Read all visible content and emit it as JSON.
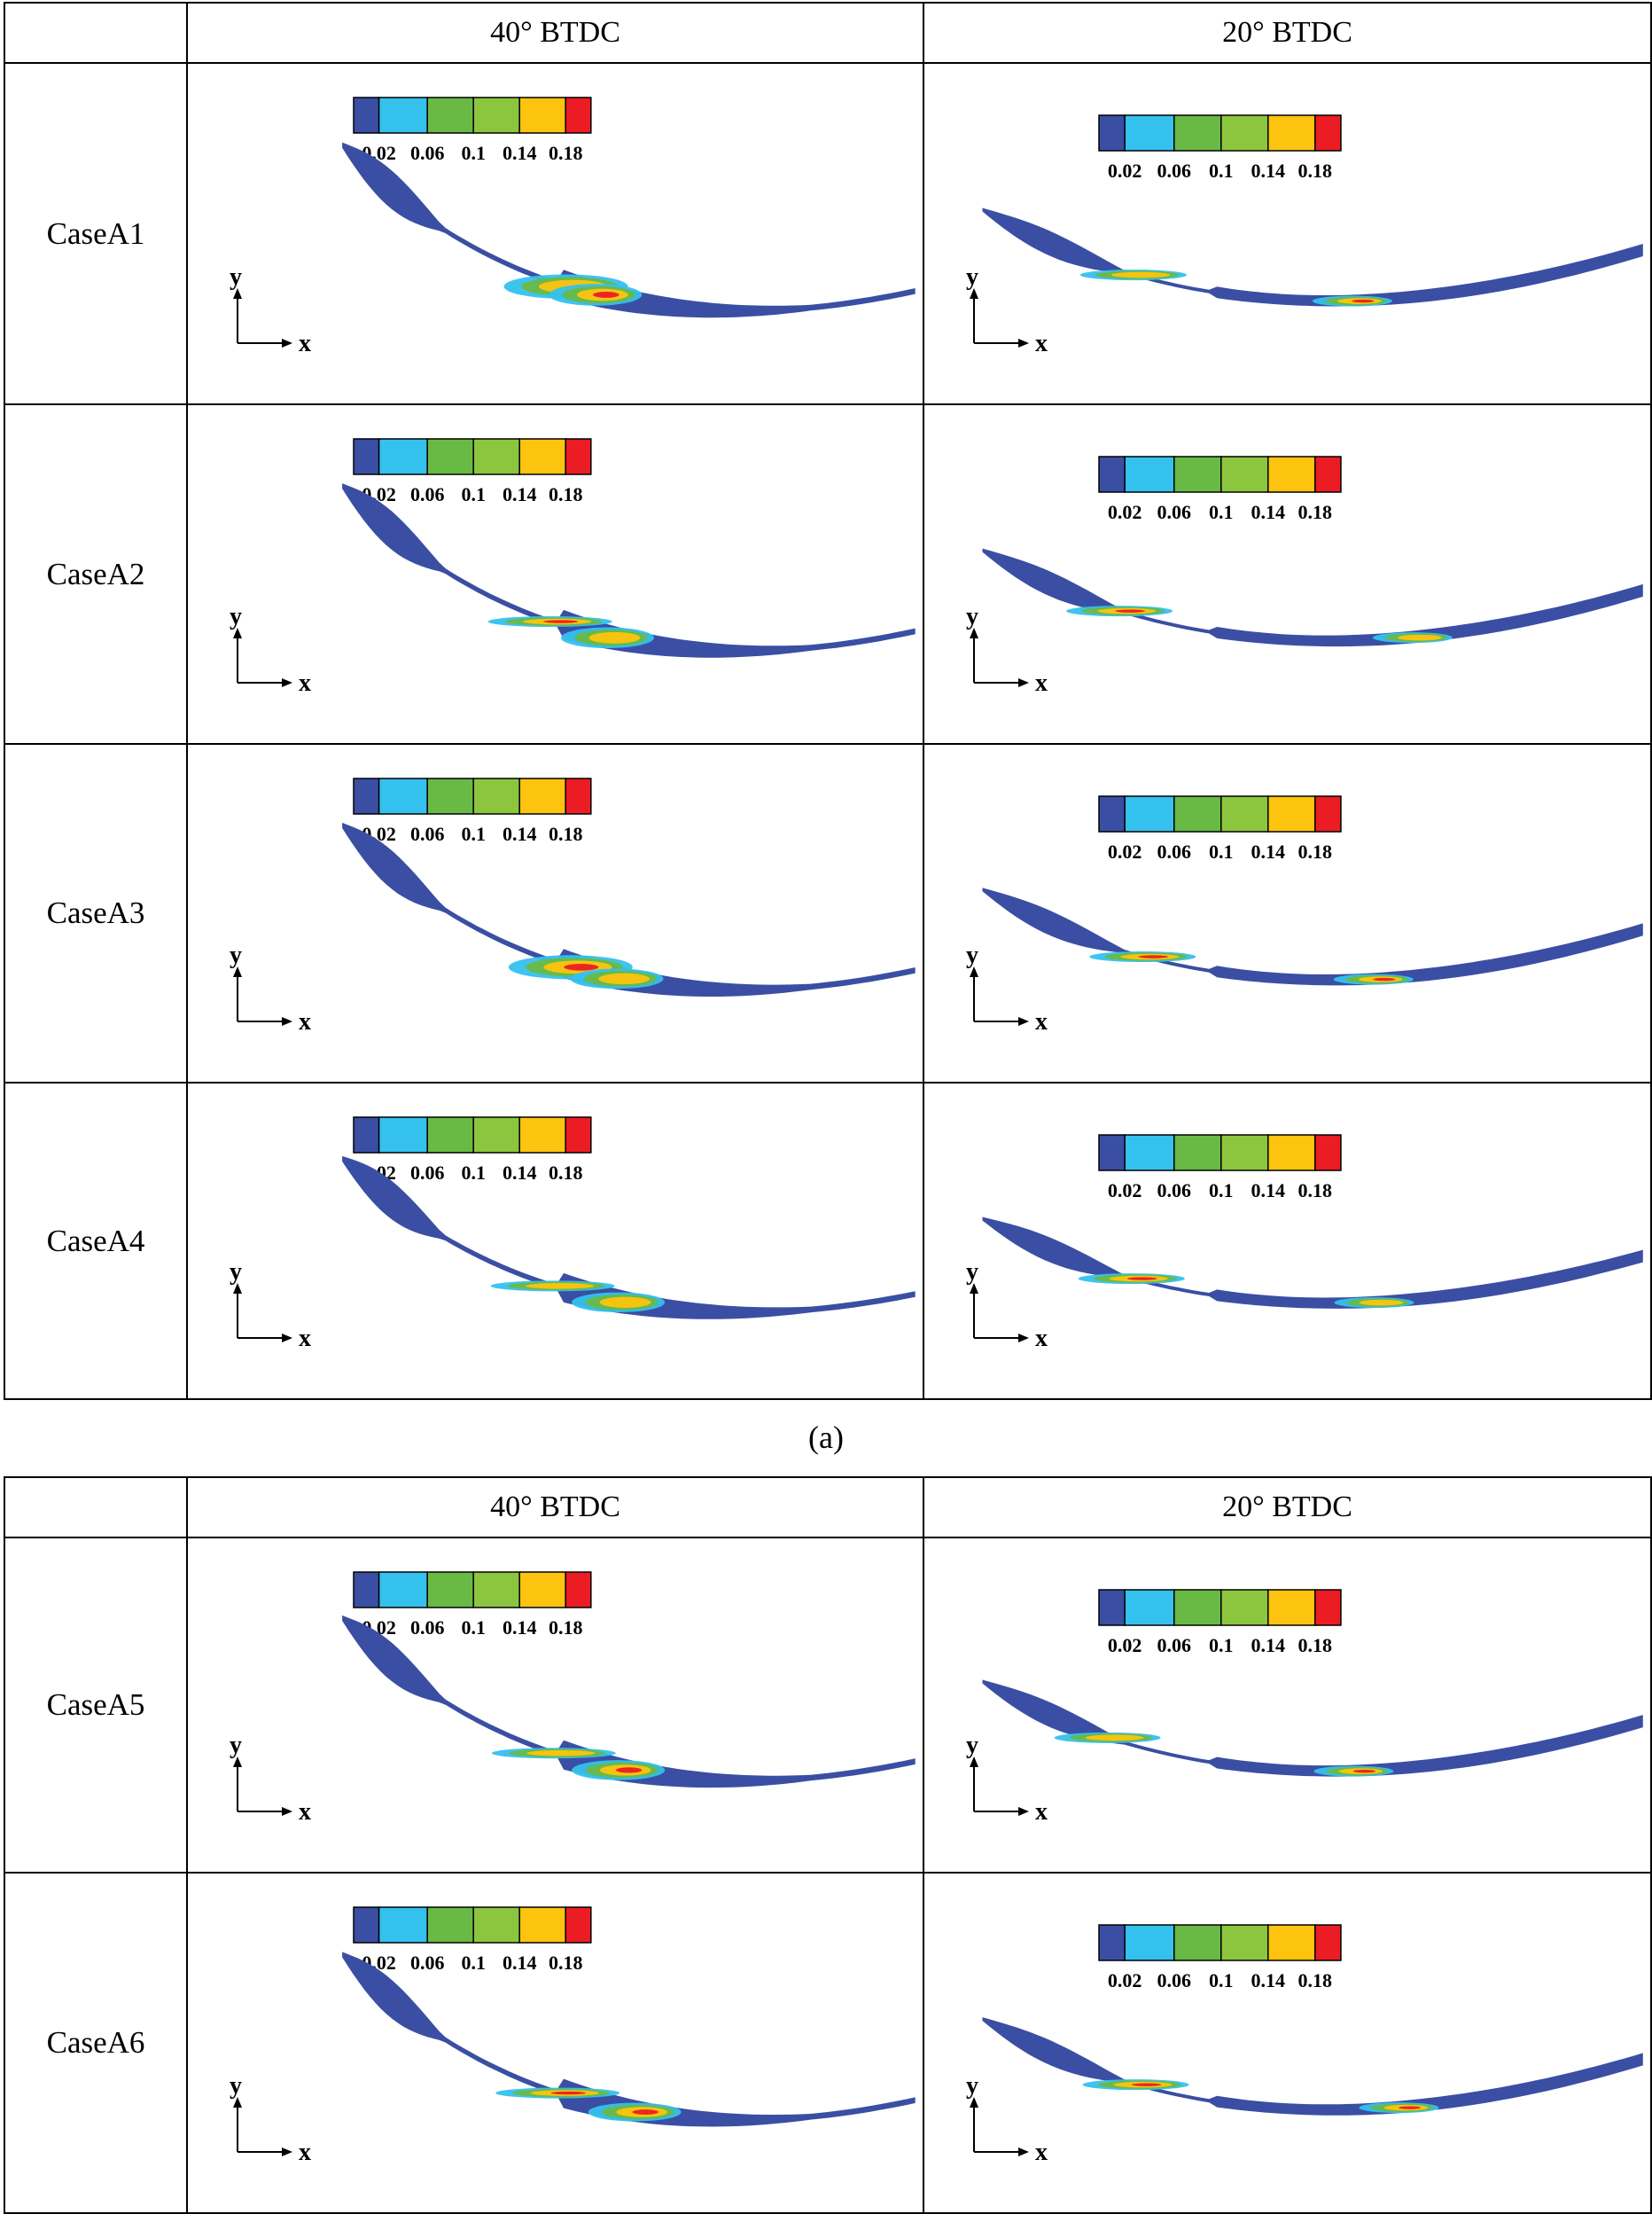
{
  "colors": {
    "blue": "#3a4fa3",
    "cyan": "#34c1ee",
    "green": "#69b945",
    "lightgreen": "#8cc63f",
    "yellow": "#fcc40e",
    "red": "#ec1c24"
  },
  "legend": {
    "ticks": [
      "0.02",
      "0.06",
      "0.1",
      "0.14",
      "0.18"
    ]
  },
  "axes": {
    "x": "x",
    "y": "y"
  },
  "panel_a": {
    "header": {
      "blank": "",
      "col1": "40° BTDC",
      "col2": "20° BTDC"
    },
    "rows": [
      {
        "label": "CaseA1"
      },
      {
        "label": "CaseA2"
      },
      {
        "label": "CaseA3"
      },
      {
        "label": "CaseA4"
      }
    ],
    "caption": "(a)"
  },
  "panel_b": {
    "header": {
      "blank": "",
      "col1": "40° BTDC",
      "col2": "20° BTDC"
    },
    "rows": [
      {
        "label": "CaseA5"
      },
      {
        "label": "CaseA6"
      }
    ]
  }
}
